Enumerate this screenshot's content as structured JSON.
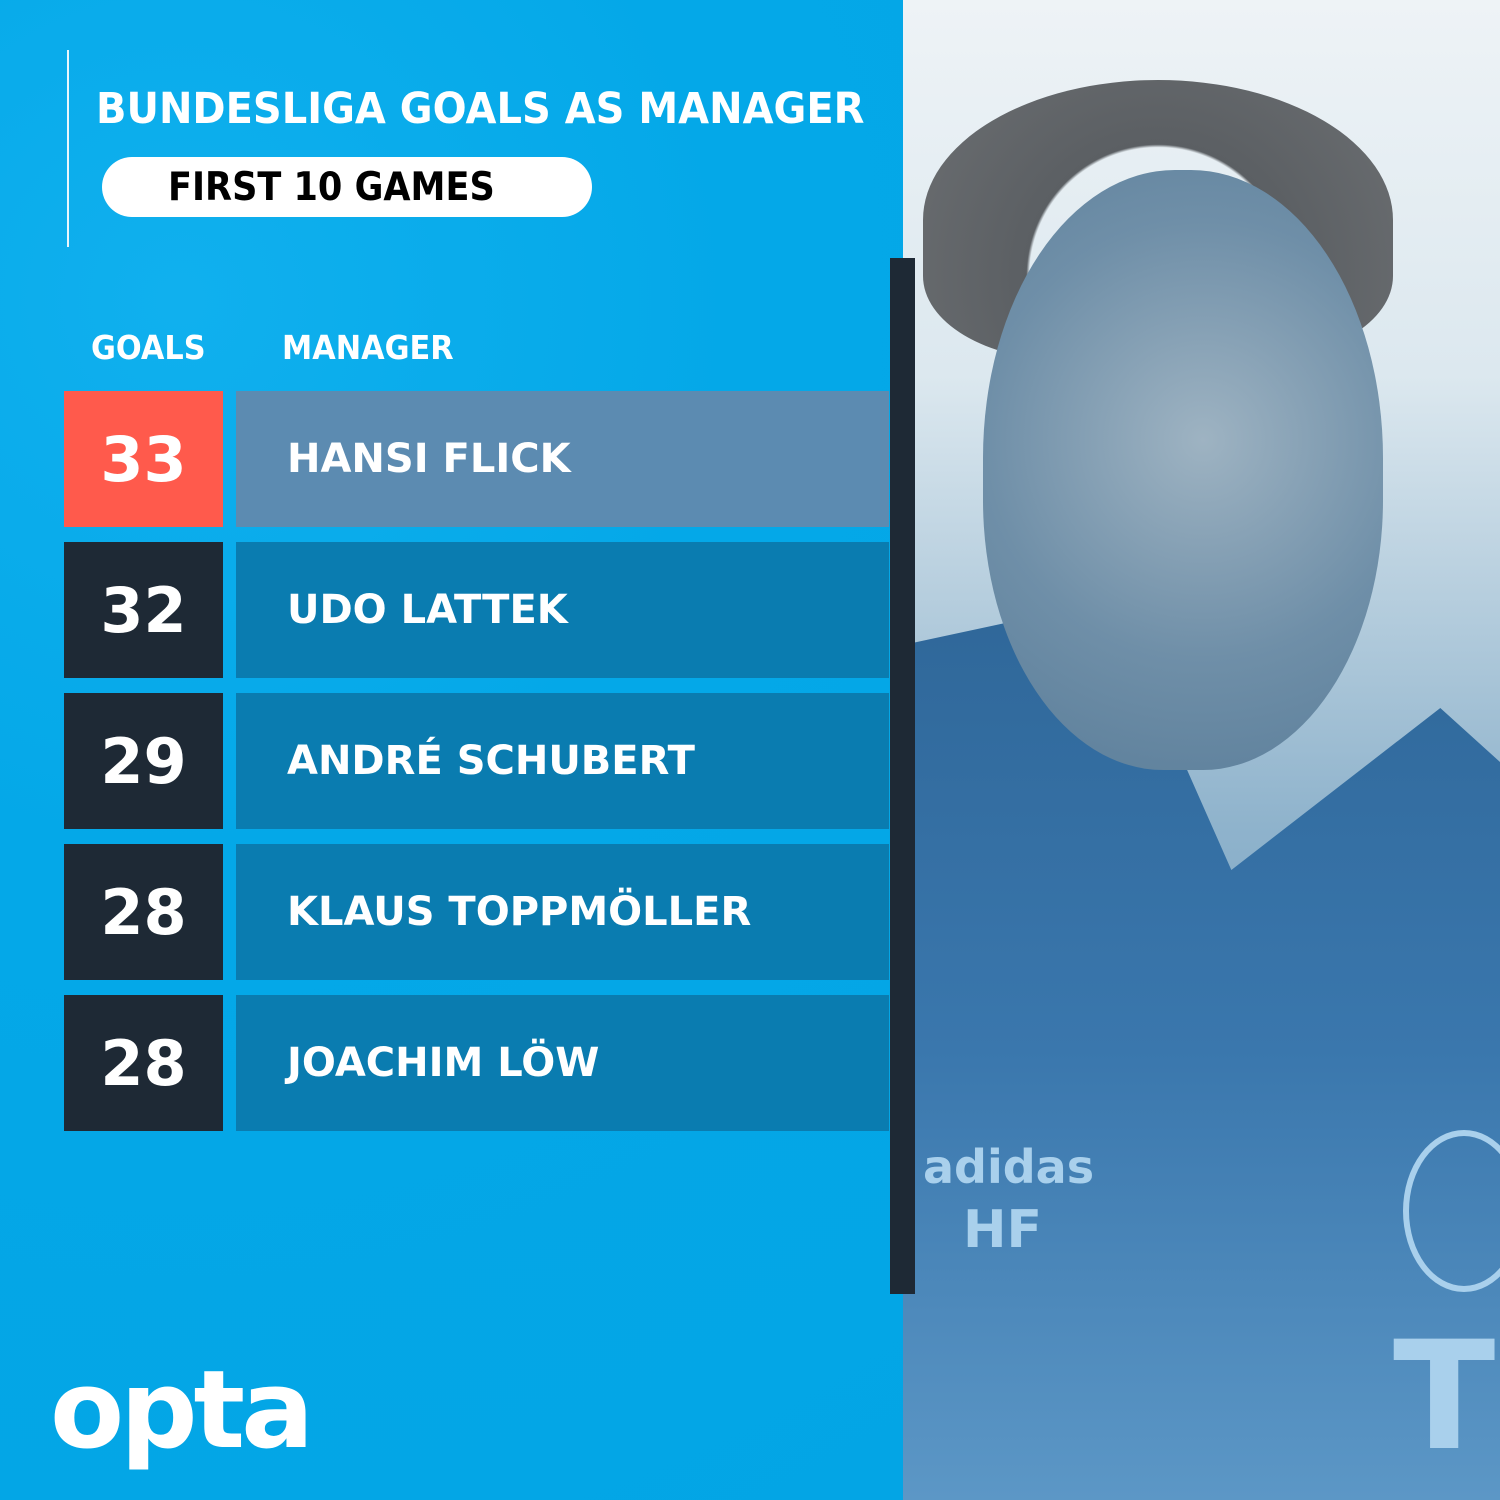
{
  "title": "BUNDESLIGA GOALS AS MANAGER",
  "subtitle": "FIRST 10 GAMES",
  "brand_logo": "opta",
  "colors": {
    "background": "#05aae9",
    "highlight_goals": "#ff5a4c",
    "highlight_name": "#5c8bb1",
    "goals_box": "#1e2935",
    "name_box": "#0a7cb0"
  },
  "photo": {
    "jersey_brand": "adidas",
    "initials": "HF",
    "sponsor": "T"
  },
  "chart_data": {
    "type": "table",
    "title": "BUNDESLIGA GOALS AS MANAGER",
    "subtitle": "FIRST 10 GAMES",
    "columns": [
      "GOALS",
      "MANAGER"
    ],
    "rows": [
      {
        "goals": "33",
        "manager": "HANSI FLICK",
        "highlight": true
      },
      {
        "goals": "32",
        "manager": "UDO LATTEK"
      },
      {
        "goals": "29",
        "manager": "ANDRÉ SCHUBERT"
      },
      {
        "goals": "28",
        "manager": "KLAUS TOPPMÖLLER"
      },
      {
        "goals": "28",
        "manager": "JOACHIM LÖW"
      }
    ]
  }
}
